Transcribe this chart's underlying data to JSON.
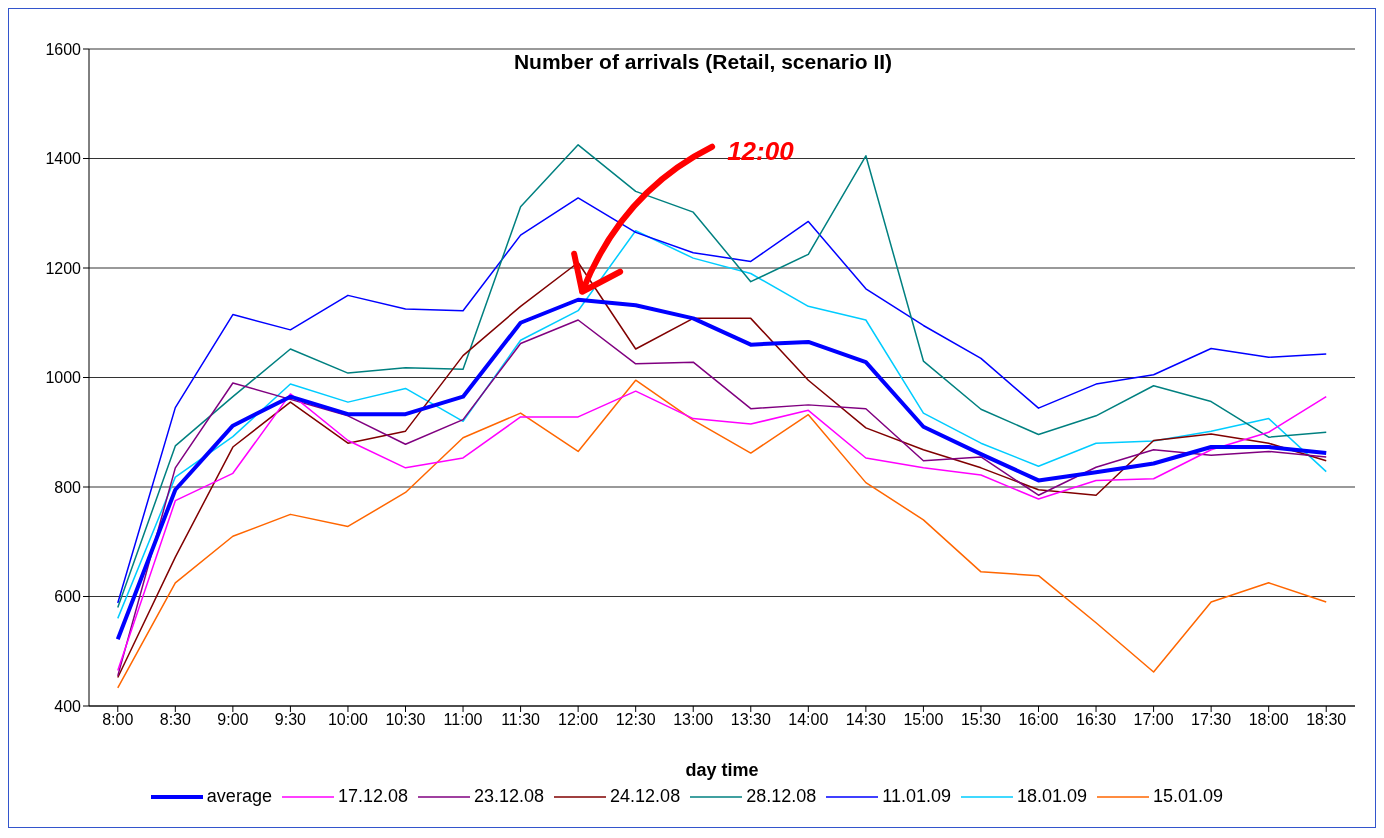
{
  "chart_data": {
    "type": "line",
    "title": "Number of arrivals (Retail, scenario II)",
    "xlabel": "day time",
    "categories": [
      "8:00",
      "8:30",
      "9:00",
      "9:30",
      "10:00",
      "10:30",
      "11:00",
      "11:30",
      "12:00",
      "12:30",
      "13:00",
      "13:30",
      "14:00",
      "14:30",
      "15:00",
      "15:30",
      "16:00",
      "16:30",
      "17:00",
      "17:30",
      "18:00",
      "18:30"
    ],
    "series": [
      {
        "name": "average",
        "color": "#0000ff",
        "values": [
          522,
          795,
          912,
          965,
          933,
          933,
          965,
          1100,
          1142,
          1132,
          1108,
          1060,
          1065,
          1028,
          910,
          860,
          812,
          827,
          843,
          873,
          873,
          862
        ]
      },
      {
        "name": "17.12.08",
        "color": "#ff00ff",
        "values": [
          465,
          775,
          825,
          970,
          885,
          835,
          853,
          928,
          928,
          975,
          925,
          915,
          940,
          853,
          835,
          822,
          778,
          812,
          815,
          868,
          900,
          965
        ]
      },
      {
        "name": "23.12.08",
        "color": "#800080",
        "values": [
          455,
          835,
          990,
          960,
          930,
          878,
          923,
          1062,
          1105,
          1025,
          1028,
          943,
          950,
          943,
          848,
          855,
          785,
          836,
          868,
          858,
          865,
          855
        ]
      },
      {
        "name": "24.12.08",
        "color": "#800000",
        "values": [
          452,
          672,
          873,
          955,
          880,
          902,
          1040,
          1130,
          1210,
          1052,
          1108,
          1108,
          995,
          908,
          868,
          835,
          795,
          785,
          885,
          897,
          880,
          848
        ]
      },
      {
        "name": "28.12.08",
        "color": "#008080",
        "values": [
          580,
          875,
          965,
          1052,
          1008,
          1018,
          1015,
          1312,
          1425,
          1340,
          1302,
          1175,
          1225,
          1405,
          1030,
          942,
          896,
          930,
          985,
          956,
          891,
          900
        ]
      },
      {
        "name": "11.01.09",
        "color": "#0000ff",
        "values": [
          588,
          945,
          1115,
          1087,
          1150,
          1125,
          1122,
          1260,
          1328,
          1265,
          1228,
          1212,
          1285,
          1162,
          1095,
          1035,
          944,
          988,
          1005,
          1053,
          1037,
          1043
        ]
      },
      {
        "name": "18.01.09",
        "color": "#00ccff",
        "values": [
          560,
          818,
          892,
          988,
          955,
          980,
          920,
          1068,
          1122,
          1268,
          1218,
          1190,
          1130,
          1105,
          935,
          880,
          838,
          880,
          884,
          902,
          925,
          828
        ]
      },
      {
        "name": "15.01.09",
        "color": "#ff6600",
        "values": [
          433,
          625,
          710,
          750,
          728,
          790,
          890,
          935,
          865,
          995,
          922,
          862,
          932,
          808,
          740,
          645,
          638,
          552,
          462,
          590,
          625,
          590
        ]
      }
    ],
    "annotations": [
      {
        "text": "12:00",
        "x": "12:00",
        "y": 1142
      }
    ],
    "ylim": [
      400,
      1600
    ],
    "yticks": [
      400,
      600,
      800,
      1000,
      1200,
      1400,
      1600
    ],
    "grid": "y",
    "legend": "bottom",
    "marker": "none",
    "line_style": "solid"
  }
}
